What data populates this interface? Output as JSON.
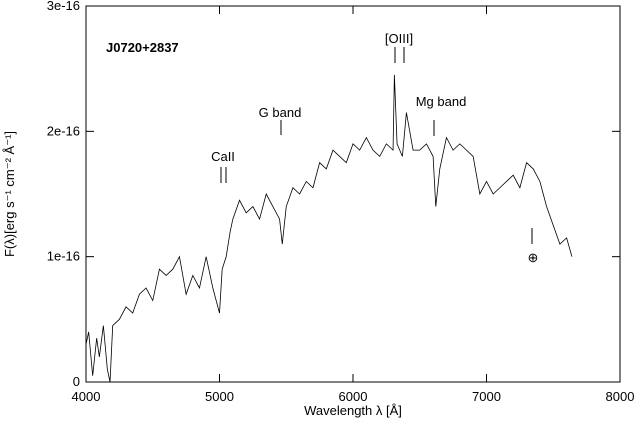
{
  "chart_data": {
    "type": "line",
    "x_label": "Wavelength λ [Å]",
    "y_label": "F(λ)[erg s⁻¹ cm⁻² Å⁻¹]",
    "annotations": [
      "J0720+2837",
      "CaII",
      "G band",
      "[OIII]",
      "Mg band",
      "⊕"
    ],
    "color": "#000000",
    "xlim": [
      4000,
      8000
    ],
    "xticks": [
      4000,
      5000,
      6000,
      7000,
      8000
    ],
    "ylim": [
      0,
      3e-16
    ],
    "yticks": [
      0,
      1e-16,
      2e-16,
      3e-16
    ],
    "x": [
      4000,
      4020,
      4050,
      4080,
      4100,
      4130,
      4160,
      4180,
      4200,
      4250,
      4300,
      4350,
      4400,
      4450,
      4500,
      4550,
      4600,
      4650,
      4700,
      4750,
      4800,
      4850,
      4900,
      4950,
      5000,
      5020,
      5050,
      5080,
      5100,
      5150,
      5200,
      5250,
      5300,
      5350,
      5400,
      5450,
      5470,
      5500,
      5550,
      5600,
      5650,
      5700,
      5750,
      5800,
      5850,
      5900,
      5950,
      6000,
      6050,
      6100,
      6150,
      6200,
      6250,
      6300,
      6310,
      6330,
      6370,
      6400,
      6450,
      6500,
      6550,
      6600,
      6620,
      6650,
      6700,
      6750,
      6800,
      6850,
      6900,
      6950,
      7000,
      7050,
      7100,
      7150,
      7200,
      7250,
      7300,
      7350,
      7400,
      7450,
      7500,
      7550,
      7600,
      7640
    ],
    "values": [
      3e-17,
      4e-17,
      5e-18,
      3.5e-17,
      2e-17,
      4.5e-17,
      1e-17,
      0,
      4.5e-17,
      5e-17,
      6e-17,
      5.5e-17,
      7e-17,
      7.5e-17,
      6.5e-17,
      9e-17,
      8.5e-17,
      9e-17,
      1e-16,
      7e-17,
      8.5e-17,
      7.5e-17,
      1e-16,
      7.5e-17,
      5.5e-17,
      9e-17,
      1e-16,
      1.2e-16,
      1.3e-16,
      1.45e-16,
      1.35e-16,
      1.4e-16,
      1.3e-16,
      1.5e-16,
      1.4e-16,
      1.3e-16,
      1.1e-16,
      1.4e-16,
      1.55e-16,
      1.5e-16,
      1.6e-16,
      1.55e-16,
      1.75e-16,
      1.7e-16,
      1.85e-16,
      1.8e-16,
      1.75e-16,
      1.9e-16,
      1.85e-16,
      1.95e-16,
      1.85e-16,
      1.8e-16,
      1.9e-16,
      1.85e-16,
      2.45e-16,
      1.9e-16,
      1.8e-16,
      2.15e-16,
      1.85e-16,
      1.85e-16,
      1.9e-16,
      1.8e-16,
      1.4e-16,
      1.7e-16,
      1.95e-16,
      1.85e-16,
      1.9e-16,
      1.85e-16,
      1.8e-16,
      1.5e-16,
      1.6e-16,
      1.5e-16,
      1.55e-16,
      1.6e-16,
      1.65e-16,
      1.55e-16,
      1.75e-16,
      1.7e-16,
      1.6e-16,
      1.4e-16,
      1.25e-16,
      1.1e-16,
      1.15e-16,
      1e-16
    ]
  }
}
